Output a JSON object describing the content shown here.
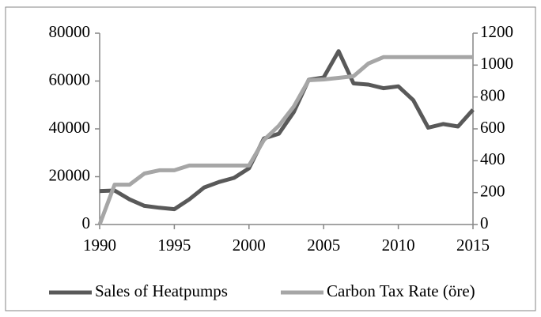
{
  "chart_data": {
    "type": "line",
    "x": [
      1990,
      1991,
      1992,
      1993,
      1994,
      1995,
      1996,
      1997,
      1998,
      1999,
      2000,
      2001,
      2002,
      2003,
      2004,
      2005,
      2006,
      2007,
      2008,
      2009,
      2010,
      2011,
      2012,
      2013,
      2014,
      2015
    ],
    "xlim": [
      1990,
      2015
    ],
    "xticks": [
      1990,
      1995,
      2000,
      2005,
      2010,
      2015
    ],
    "ylim": [
      0,
      80000
    ],
    "yticks": [
      0,
      20000,
      40000,
      60000,
      80000
    ],
    "y2lim": [
      0,
      1200
    ],
    "y2ticks": [
      0,
      200,
      400,
      600,
      800,
      1000,
      1200
    ],
    "legend": "bottom",
    "series": [
      {
        "name": "Sales of Heatpumps",
        "color": "#595959",
        "values": [
          14000,
          14200,
          10500,
          7800,
          7000,
          6400,
          10500,
          15500,
          17800,
          19500,
          23500,
          36000,
          38000,
          47000,
          60500,
          61500,
          72500,
          59000,
          58500,
          57000,
          57800,
          52000,
          40500,
          42000,
          41000,
          48000
        ]
      },
      {
        "name": "Carbon Tax Rate (öre)",
        "color": "#a6a6a6",
        "axis": "y2",
        "values": [
          0,
          250,
          250,
          320,
          340,
          340,
          370,
          370,
          370,
          370,
          370,
          530,
          620,
          740,
          905,
          910,
          920,
          930,
          1010,
          1050,
          1050,
          1050,
          1050,
          1050,
          1050,
          1050
        ]
      }
    ]
  }
}
